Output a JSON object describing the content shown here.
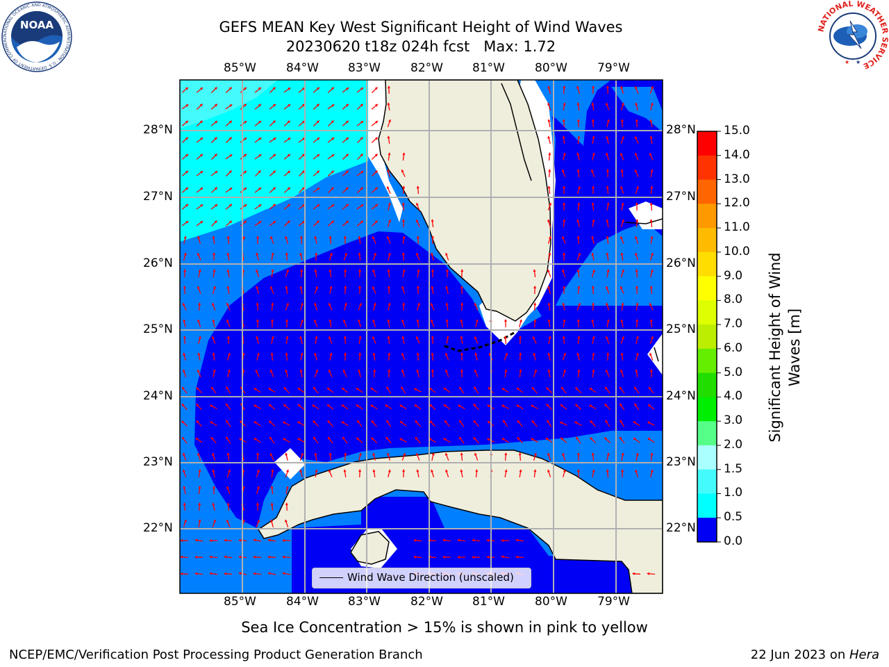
{
  "header": {
    "title_line1": "GEFS MEAN Key West Significant Height of Wind Waves",
    "title_line2": "20230620 t18z 024h fcst   Max: 1.72"
  },
  "logos": {
    "noaa_text": "NOAA",
    "noaa_ring": "NATIONAL OCEANIC AND ATMOSPHERIC ADMINISTRATION · U.S. DEPARTMENT OF COMMERCE",
    "nws_ring": "NATIONAL WEATHER SERVICE"
  },
  "map": {
    "lon_labels": [
      "85°W",
      "84°W",
      "83°W",
      "82°W",
      "81°W",
      "80°W",
      "79°W"
    ],
    "lat_labels": [
      "28°N",
      "27°N",
      "26°N",
      "25°N",
      "24°N",
      "23°N",
      "22°N"
    ],
    "legend_label": "Wind Wave Direction (unscaled)",
    "colors": {
      "land": "#efeedd",
      "wave_0_0_5": "#0000f5",
      "wave_0_5_1_0": "#0080ff",
      "wave_1_0_1_5": "#00ffff",
      "wave_1_5_2_0": "#44fafa",
      "arrows": "#ff0000",
      "grid": "#b0b0b0"
    }
  },
  "colorbar": {
    "label_line1": "Significant Height of Wind",
    "label_line2": "Waves [m]",
    "ticks": [
      "15.0",
      "14.0",
      "13.0",
      "12.0",
      "11.0",
      "10.0",
      "9.0",
      "8.0",
      "7.0",
      "6.0",
      "5.0",
      "4.0",
      "3.0",
      "2.0",
      "1.5",
      "1.0",
      "0.5",
      "0.0"
    ],
    "colors": [
      "#ff0000",
      "#ff3300",
      "#ff6600",
      "#ff9900",
      "#ffbb00",
      "#ffdd00",
      "#ffff00",
      "#ddff00",
      "#bbee00",
      "#66ee00",
      "#22dd00",
      "#00ee00",
      "#55ff88",
      "#aaffff",
      "#44fafa",
      "#00ffff",
      "#0080ff",
      "#0000f5"
    ]
  },
  "footer": {
    "sea_ice_note": "Sea Ice Concentration > 15% is shown in pink to yellow",
    "producer": "NCEP/EMC/Verification Post Processing Product Generation Branch",
    "date_text": "22 Jun 2023 on ",
    "host": "Hera"
  }
}
